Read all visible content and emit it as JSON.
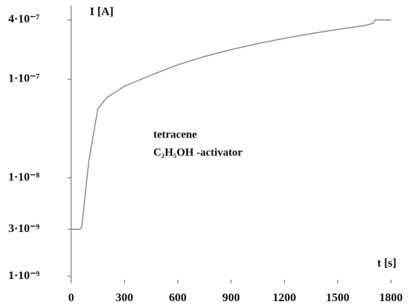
{
  "chart_data": {
    "type": "line",
    "log_y": true,
    "y_label": "I [A]",
    "x_label": "t [s]",
    "annotations": [
      "tetracene",
      "C₂H₅OH -activator"
    ],
    "x": [
      0,
      50,
      60,
      100,
      150,
      200,
      300,
      450,
      600,
      750,
      900,
      1050,
      1200,
      1350,
      1500,
      1650,
      1700,
      1710,
      1800
    ],
    "series": [
      {
        "name": "tetracene",
        "color": "#8c8c8c",
        "values": [
          3e-09,
          3e-09,
          3.2e-09,
          1.5e-08,
          5e-08,
          6.5e-08,
          8.5e-08,
          1.1e-07,
          1.4e-07,
          1.7e-07,
          2e-07,
          2.3e-07,
          2.6e-07,
          2.9e-07,
          3.2e-07,
          3.5e-07,
          3.7e-07,
          4e-07,
          4e-07
        ]
      }
    ],
    "xlim": [
      0,
      1800
    ],
    "xticks": [
      0,
      300,
      600,
      900,
      1200,
      1500,
      1800
    ],
    "ylim": [
      1e-09,
      5e-07
    ],
    "yticks": [
      {
        "value": 1e-09,
        "label": "1·10⁻⁹"
      },
      {
        "value": 3e-09,
        "label": "3·10⁻⁹"
      },
      {
        "value": 1e-08,
        "label": "1·10⁻⁸"
      },
      {
        "value": 1e-07,
        "label": "1·10⁻⁷"
      },
      {
        "value": 4e-07,
        "label": "4·10⁻⁷"
      }
    ]
  }
}
